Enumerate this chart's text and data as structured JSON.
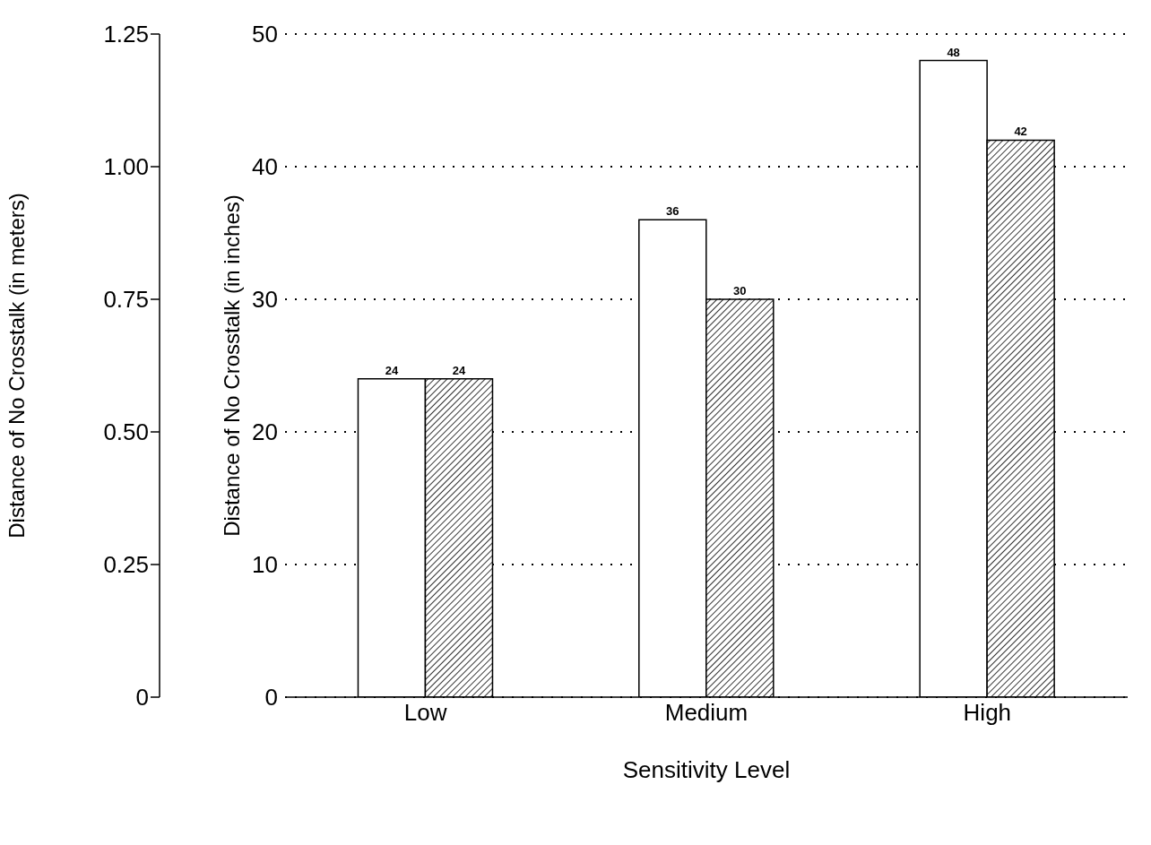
{
  "chart_data": {
    "type": "bar",
    "xlabel": "Sensitivity Level",
    "ylabel": "Distance of No Crosstalk (in inches)",
    "y2label": "Distance of No Crosstalk (in meters)",
    "categories": [
      "Low",
      "Medium",
      "High"
    ],
    "series": [
      {
        "color": "#ffffff",
        "values": [
          24,
          36,
          48
        ]
      },
      {
        "color": "#000000",
        "values": [
          24,
          30,
          42
        ]
      }
    ],
    "ylim": [
      0,
      50
    ],
    "yticks": [
      0,
      10,
      20,
      30,
      40,
      50
    ],
    "y2lim": [
      0,
      1.25
    ],
    "y2ticks": [
      0,
      0.25,
      {
        "value": 0.5,
        "label": "0.50"
      },
      0.75,
      {
        "value": 1,
        "label": "1.00"
      },
      1.25
    ],
    "grid": "y",
    "data_labels": true,
    "legend": false
  }
}
